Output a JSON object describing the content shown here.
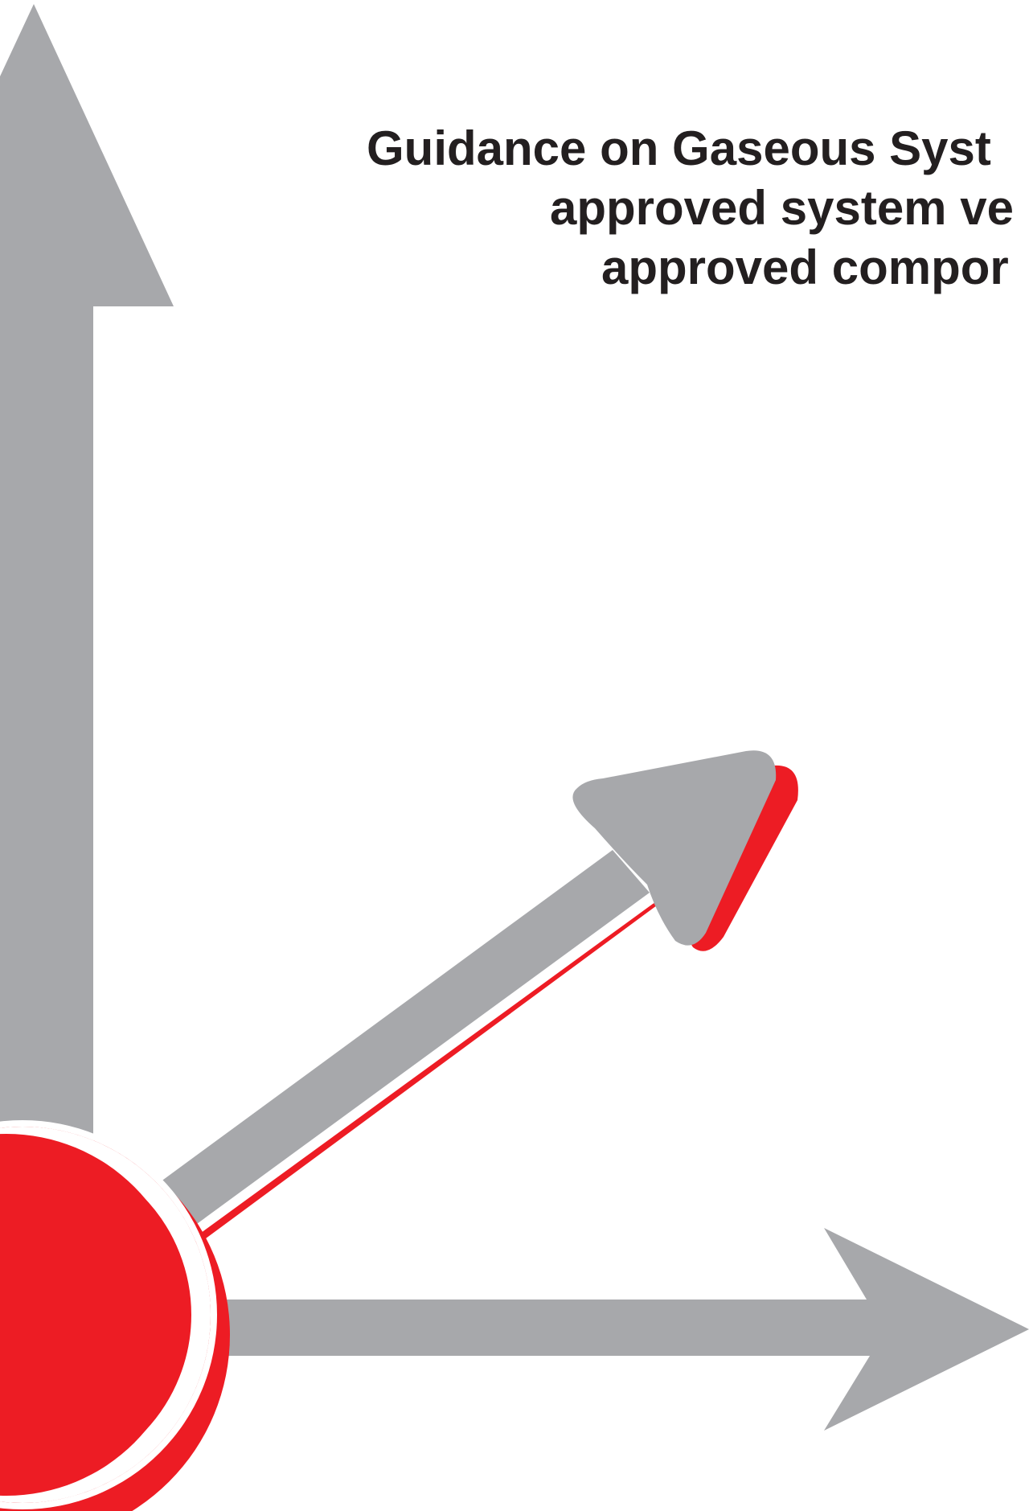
{
  "cover": {
    "title_lines": [
      "Guidance on Gaseous Syst",
      "approved system ve",
      "approved compor"
    ]
  },
  "colors": {
    "arrow_grey": "#a7a8ab",
    "accent_red": "#ed1c24",
    "background": "#ffffff",
    "text": "#231f20"
  }
}
